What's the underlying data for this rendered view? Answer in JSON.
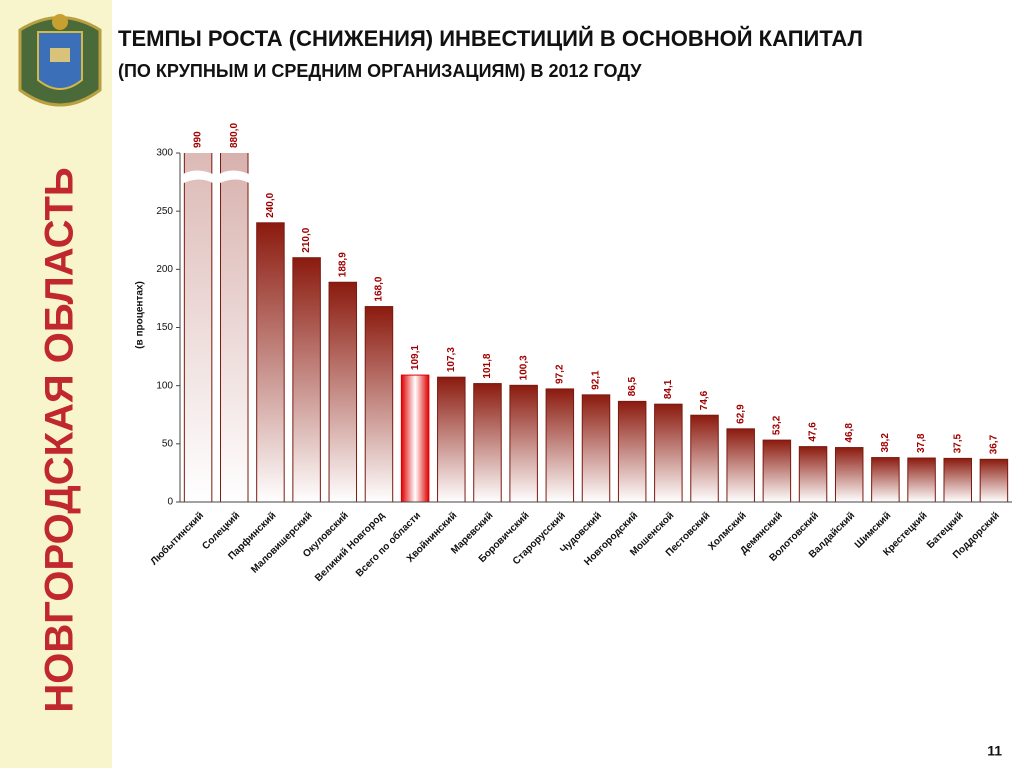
{
  "side_title": "НОВГОРОДСКАЯ ОБЛАСТЬ",
  "page_number": "11",
  "chart_data": {
    "type": "bar",
    "title": "ТЕМПЫ РОСТА (СНИЖЕНИЯ) ИНВЕСТИЦИЙ В ОСНОВНОЙ КАПИТАЛ",
    "subtitle": "(ПО КРУПНЫМ И СРЕДНИМ ОРГАНИЗАЦИЯМ) В 2012 ГОДУ",
    "y_label": "(в процентах)",
    "categories": [
      "Любытинский",
      "Солецкий",
      "Парфинский",
      "Маловишерский",
      "Окуловский",
      "Великий Новгород",
      "Всего по области",
      "Хвойнинский",
      "Маревский",
      "Боровичский",
      "Старорусский",
      "Чудовский",
      "Новгородский",
      "Мошенской",
      "Пестовский",
      "Холмский",
      "Демянский",
      "Волотовский",
      "Валдайский",
      "Шимский",
      "Крестецкий",
      "Батецкий",
      "Поддорский"
    ],
    "values": [
      990,
      880,
      240,
      210,
      188.9,
      168,
      109.1,
      107.3,
      101.8,
      100.3,
      97.2,
      92.1,
      86.5,
      84.1,
      74.6,
      62.9,
      53.2,
      47.6,
      46.8,
      38.2,
      37.8,
      37.5,
      36.7
    ],
    "value_labels": [
      "990",
      "880,0",
      "240,0",
      "210,0",
      "188,9",
      "168,0",
      "109,1",
      "107,3",
      "101,8",
      "100,3",
      "97,2",
      "92,1",
      "86,5",
      "84,1",
      "74,6",
      "62,9",
      "53,2",
      "47,6",
      "46,8",
      "38,2",
      "37,8",
      "37,5",
      "36,7"
    ],
    "color": "#8b1a0e",
    "highlight_category": "Всего по области",
    "highlight_color": "#e00000",
    "ylim": [
      0,
      300
    ],
    "yticks": [
      0,
      50,
      100,
      150,
      200,
      250,
      300
    ],
    "grid": false
  }
}
